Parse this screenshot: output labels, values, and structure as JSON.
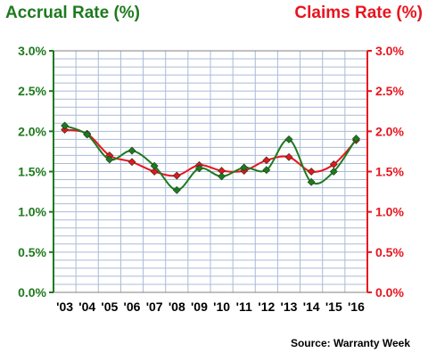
{
  "chart_data": {
    "type": "line",
    "title_left": "Accrual Rate (%)",
    "title_right": "Claims Rate (%)",
    "source": "Source: Warranty Week",
    "categories": [
      "'03",
      "'04",
      "'05",
      "'06",
      "'07",
      "'08",
      "'09",
      "'10",
      "'11",
      "'12",
      "'13",
      "'14",
      "'15",
      "'16"
    ],
    "y_ticks": [
      "0.0%",
      "0.5%",
      "1.0%",
      "1.5%",
      "2.0%",
      "2.5%",
      "3.0%"
    ],
    "ylim": [
      0,
      3.0
    ],
    "grid": true,
    "colors": {
      "accrual": "#1e7a1e",
      "claims": "#e8141e",
      "grid": "#a8bcd8",
      "plot_border": "#808080"
    },
    "series": [
      {
        "key": "accrual",
        "values": [
          2.07,
          1.96,
          1.65,
          1.76,
          1.57,
          1.27,
          1.54,
          1.44,
          1.55,
          1.52,
          1.9,
          1.37,
          1.5,
          1.91
        ]
      },
      {
        "key": "claims",
        "values": [
          2.02,
          1.97,
          1.7,
          1.62,
          1.5,
          1.45,
          1.58,
          1.51,
          1.51,
          1.64,
          1.68,
          1.5,
          1.59,
          1.89
        ]
      }
    ]
  }
}
